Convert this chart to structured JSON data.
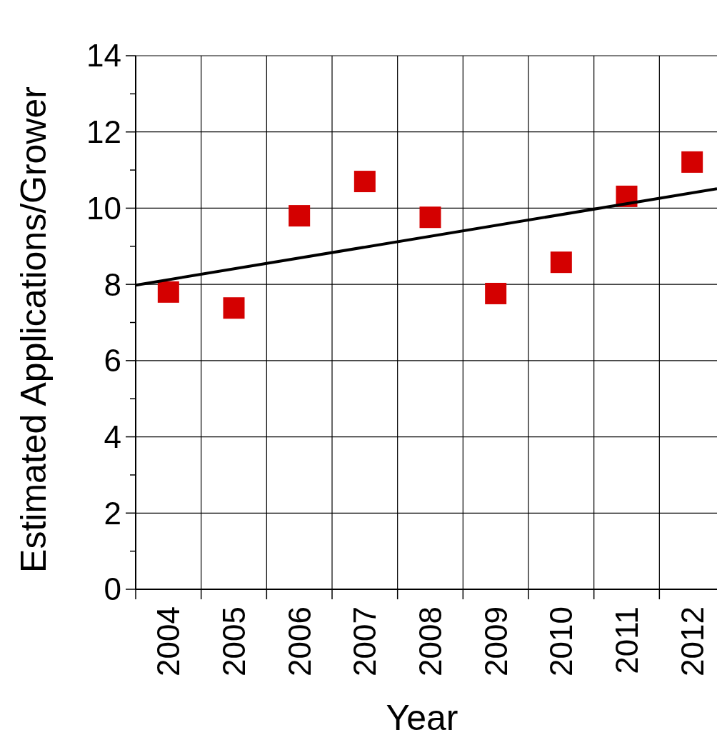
{
  "chart_data": {
    "type": "scatter",
    "xlabel": "Year",
    "ylabel": "Estimated Applications/Grower",
    "xlim": [
      2003.5,
      2012.38
    ],
    "ylim": [
      0,
      14
    ],
    "xticks": [
      {
        "value": 2003.5,
        "label": null
      },
      {
        "value": 2004,
        "label": "2004"
      },
      {
        "value": 2004.5,
        "label": null
      },
      {
        "value": 2005,
        "label": "2005"
      },
      {
        "value": 2005.5,
        "label": null
      },
      {
        "value": 2006,
        "label": "2006"
      },
      {
        "value": 2006.5,
        "label": null
      },
      {
        "value": 2007,
        "label": "2007"
      },
      {
        "value": 2007.5,
        "label": null
      },
      {
        "value": 2008,
        "label": "2008"
      },
      {
        "value": 2008.5,
        "label": null
      },
      {
        "value": 2009,
        "label": "2009"
      },
      {
        "value": 2009.5,
        "label": null
      },
      {
        "value": 2010,
        "label": "2010"
      },
      {
        "value": 2010.5,
        "label": null
      },
      {
        "value": 2011,
        "label": "2011"
      },
      {
        "value": 2011.5,
        "label": null
      },
      {
        "value": 2012,
        "label": "2012"
      }
    ],
    "yticks": [
      0,
      {
        "value": 1,
        "label": null
      },
      2,
      {
        "value": 3,
        "label": null
      },
      4,
      {
        "value": 5,
        "label": null
      },
      6,
      {
        "value": 7,
        "label": null
      },
      8,
      {
        "value": 9,
        "label": null
      },
      10,
      {
        "value": 11,
        "label": null
      },
      12,
      {
        "value": 13,
        "label": null
      },
      14
    ],
    "grid": true,
    "series": [
      {
        "marker": "square",
        "color": "#d40000",
        "x": [
          2004,
          2005,
          2006,
          2007,
          2008,
          2009,
          2010,
          2011,
          2012
        ],
        "values": [
          7.8,
          7.38,
          9.8,
          10.7,
          9.76,
          7.76,
          8.58,
          10.31,
          11.21
        ]
      },
      {
        "type": "line",
        "color": "#000000",
        "x": [
          2003.5,
          2012.38
        ],
        "values": [
          7.98,
          10.51
        ]
      }
    ]
  }
}
